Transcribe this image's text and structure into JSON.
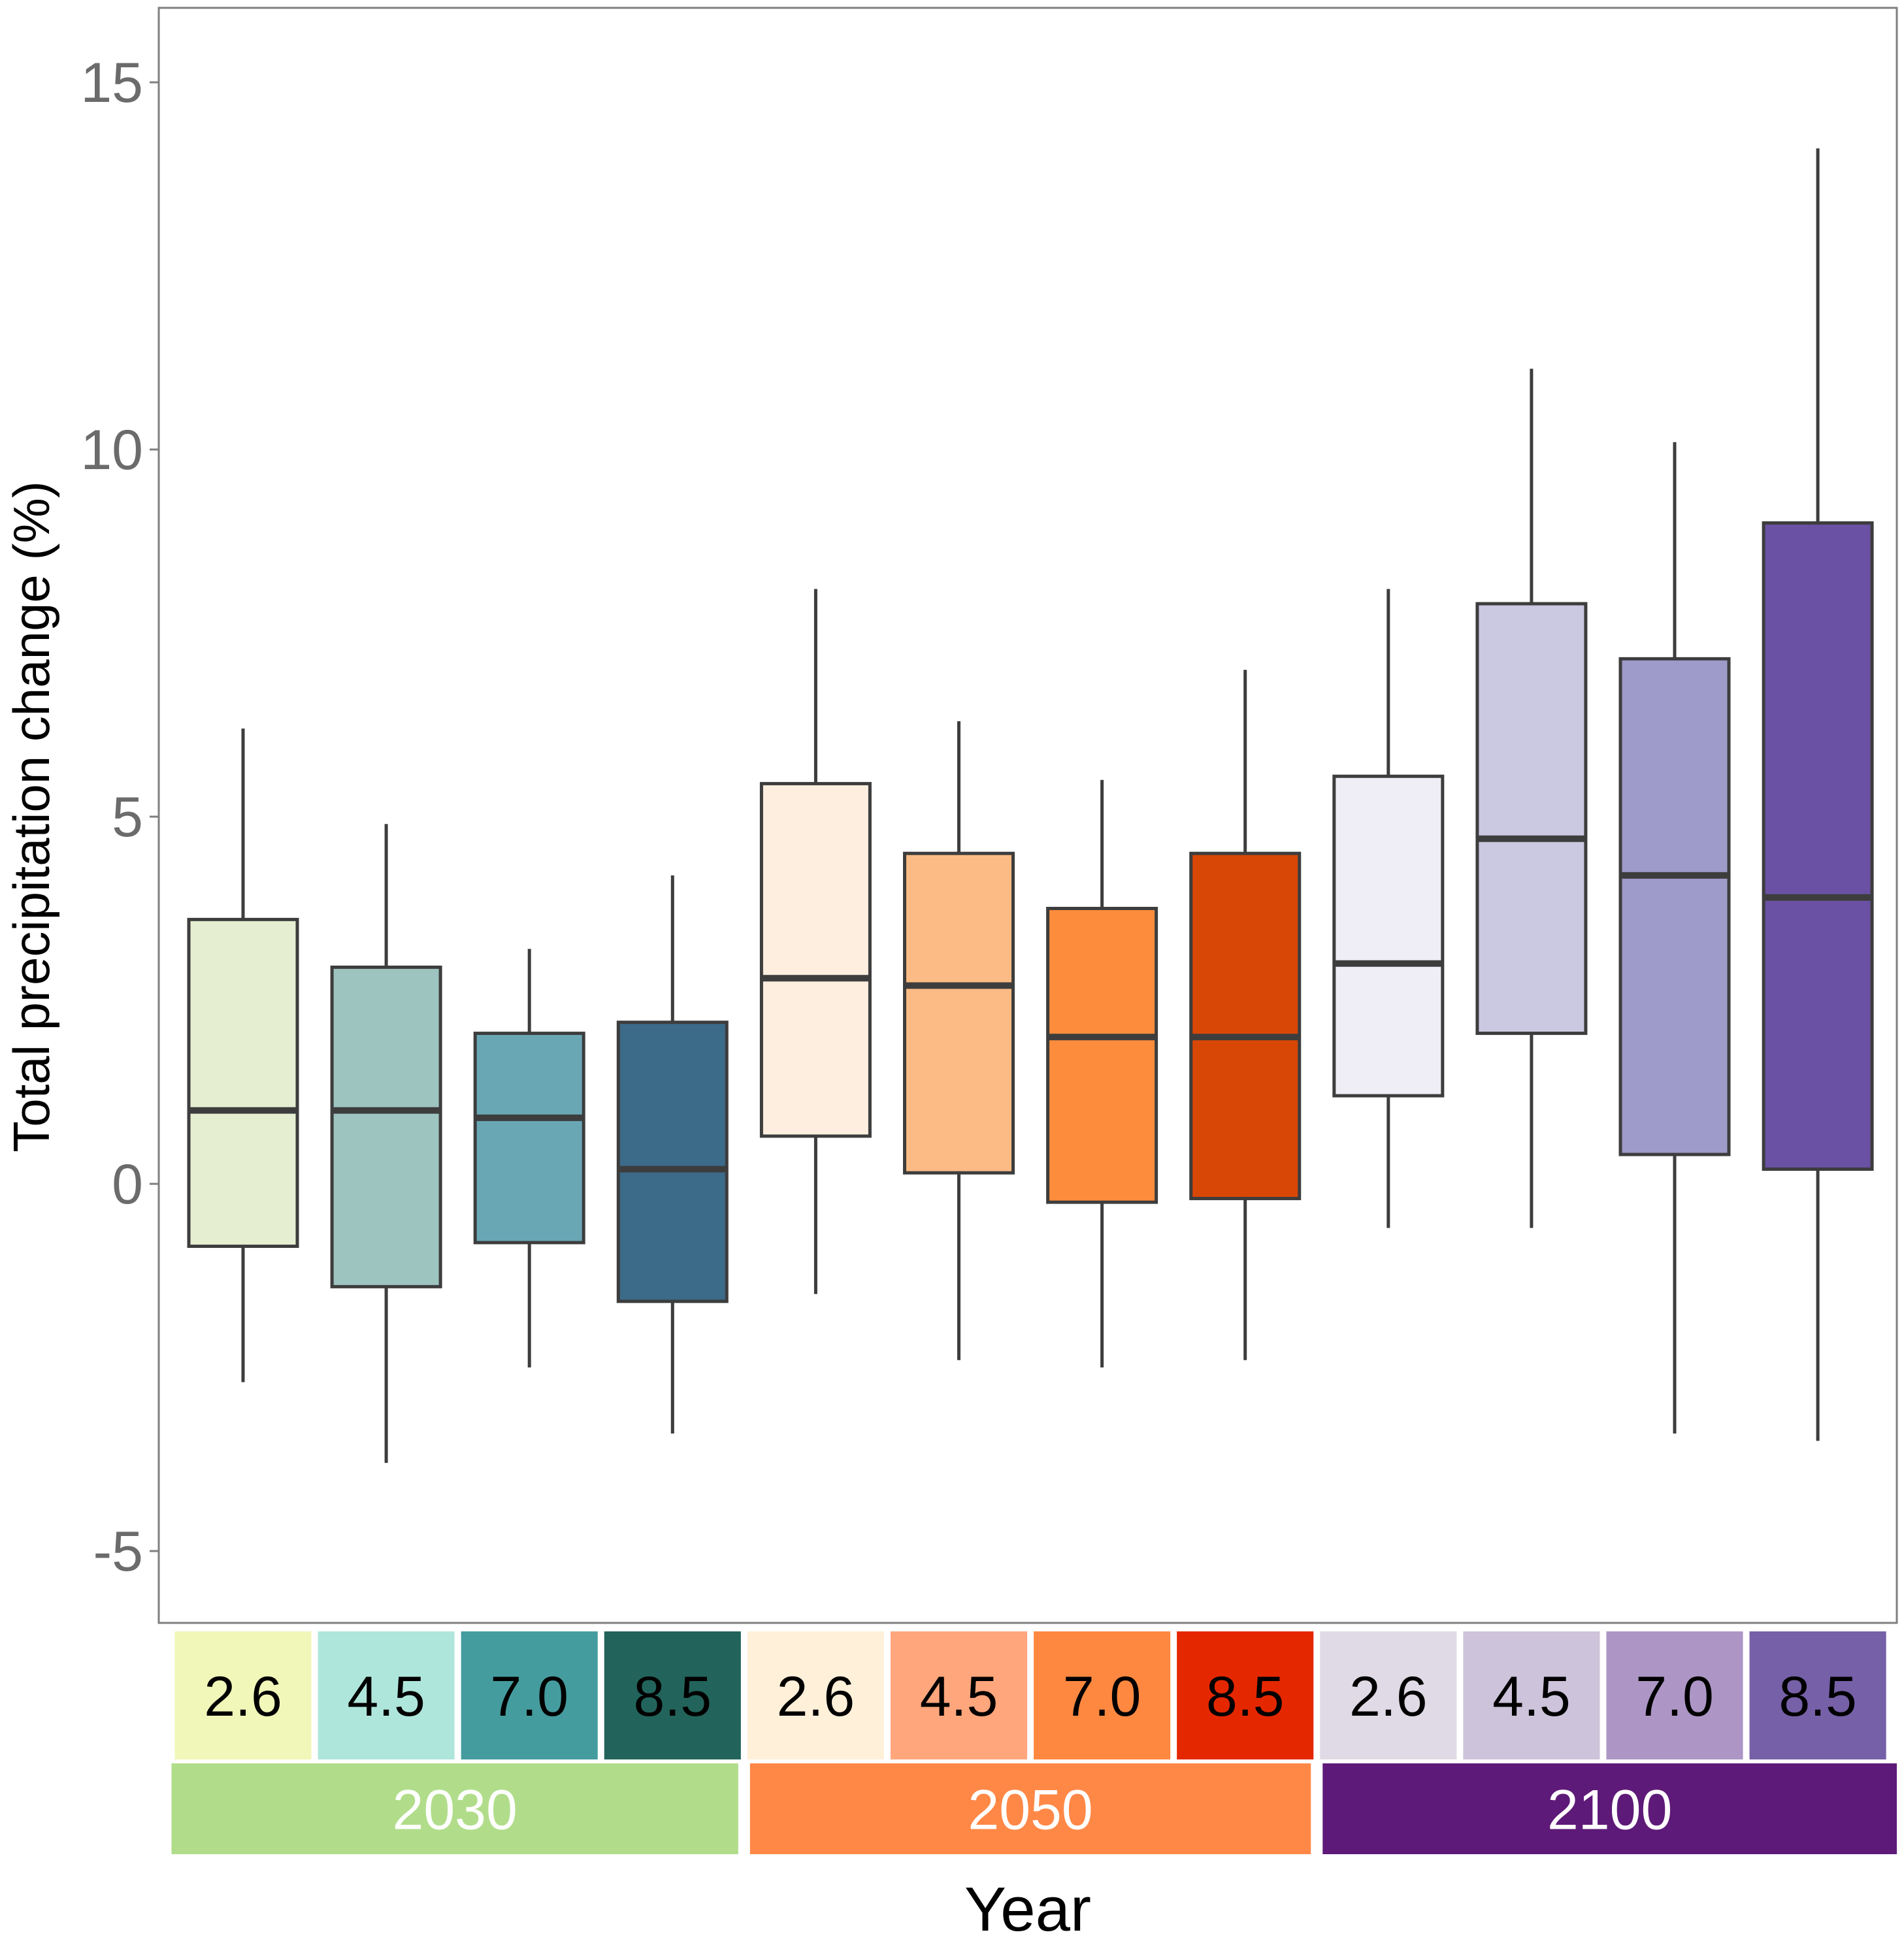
{
  "chart_data": {
    "type": "boxplot",
    "title": "",
    "xlabel": "Year",
    "ylabel": "Total precipitation change (%)",
    "ylim": [
      -6.0,
      16.0
    ],
    "y_ticks": [
      -5,
      0,
      5,
      10,
      15
    ],
    "y_tick_labels": [
      "-5",
      "0",
      "5",
      "10",
      "15"
    ],
    "grid": false,
    "groups": [
      {
        "name": "2030",
        "label": "2030",
        "color": "#B1DD8B"
      },
      {
        "name": "2050",
        "label": "2050",
        "color": "#FF8847"
      },
      {
        "name": "2100",
        "label": "2100",
        "color": "#5E1A78"
      }
    ],
    "boxes": [
      {
        "group": "2030",
        "scenario": "2.6",
        "strip_color": "#F1F7B8",
        "fill": "#E5EED0",
        "whisker_low": -2.7,
        "q1": -0.85,
        "median": 1.0,
        "q3": 3.6,
        "whisker_high": 6.2
      },
      {
        "group": "2030",
        "scenario": "4.5",
        "strip_color": "#AFE6DB",
        "fill": "#9EC4C0",
        "whisker_low": -3.8,
        "q1": -1.4,
        "median": 1.0,
        "q3": 2.95,
        "whisker_high": 4.9
      },
      {
        "group": "2030",
        "scenario": "7.0",
        "strip_color": "#459C9F",
        "fill": "#6AA7B5",
        "whisker_low": -2.5,
        "q1": -0.8,
        "median": 0.9,
        "q3": 2.05,
        "whisker_high": 3.2
      },
      {
        "group": "2030",
        "scenario": "8.5",
        "strip_color": "#22645B",
        "fill": "#3C6A89",
        "whisker_low": -3.4,
        "q1": -1.6,
        "median": 0.2,
        "q3": 2.2,
        "whisker_high": 4.2
      },
      {
        "group": "2050",
        "scenario": "2.6",
        "strip_color": "#FFF0D9",
        "fill": "#FEEEDF",
        "whisker_low": -1.5,
        "q1": 0.65,
        "median": 2.8,
        "q3": 5.45,
        "whisker_high": 8.1
      },
      {
        "group": "2050",
        "scenario": "4.5",
        "strip_color": "#FFA67C",
        "fill": "#FCBB84",
        "whisker_low": -2.4,
        "q1": 0.15,
        "median": 2.7,
        "q3": 4.5,
        "whisker_high": 6.3
      },
      {
        "group": "2050",
        "scenario": "7.0",
        "strip_color": "#FF8840",
        "fill": "#FD8D3C",
        "whisker_low": -2.5,
        "q1": -0.25,
        "median": 2.0,
        "q3": 3.75,
        "whisker_high": 5.5
      },
      {
        "group": "2050",
        "scenario": "8.5",
        "strip_color": "#E52700",
        "fill": "#D94707",
        "whisker_low": -2.4,
        "q1": -0.2,
        "median": 2.0,
        "q3": 4.5,
        "whisker_high": 7.0
      },
      {
        "group": "2100",
        "scenario": "2.6",
        "strip_color": "#E0DAE6",
        "fill": "#EFEEF6",
        "whisker_low": -0.6,
        "q1": 1.2,
        "median": 3.0,
        "q3": 5.55,
        "whisker_high": 8.1
      },
      {
        "group": "2100",
        "scenario": "4.5",
        "strip_color": "#CDC3DA",
        "fill": "#CBC9E1",
        "whisker_low": -0.6,
        "q1": 2.05,
        "median": 4.7,
        "q3": 7.9,
        "whisker_high": 11.1
      },
      {
        "group": "2100",
        "scenario": "7.0",
        "strip_color": "#AD96C6",
        "fill": "#9E9ACA",
        "whisker_low": -3.4,
        "q1": 0.4,
        "median": 4.2,
        "q3": 7.15,
        "whisker_high": 10.1
      },
      {
        "group": "2100",
        "scenario": "8.5",
        "strip_color": "#7660A8",
        "fill": "#6A51A3",
        "whisker_low": -3.5,
        "q1": 0.2,
        "median": 3.9,
        "q3": 9.0,
        "whisker_high": 14.1
      }
    ]
  }
}
